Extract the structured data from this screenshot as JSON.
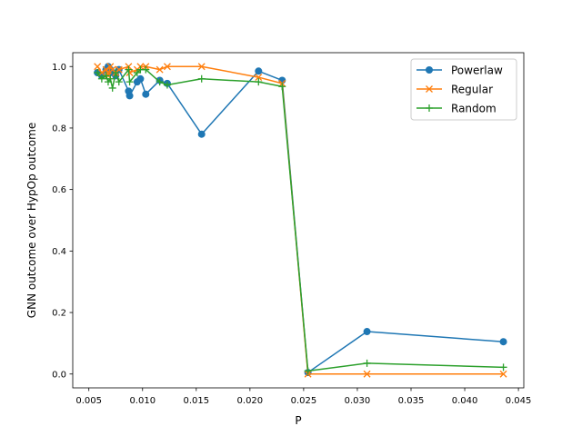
{
  "chart_data": {
    "type": "line",
    "title": "",
    "xlabel": "P",
    "ylabel": "GNN outcome over HypOp outcome",
    "xlim": [
      0.0035,
      0.0455
    ],
    "ylim": [
      -0.045,
      1.045
    ],
    "xticks": [
      0.005,
      0.01,
      0.015,
      0.02,
      0.025,
      0.03,
      0.035,
      0.04,
      0.045
    ],
    "xtick_labels": [
      "0.005",
      "0.010",
      "0.015",
      "0.020",
      "0.025",
      "0.030",
      "0.035",
      "0.040",
      "0.045"
    ],
    "yticks": [
      0.0,
      0.2,
      0.4,
      0.6,
      0.8,
      1.0
    ],
    "ytick_labels": [
      "0.0",
      "0.2",
      "0.4",
      "0.6",
      "0.8",
      "1.0"
    ],
    "grid": false,
    "legend_position": "top-right",
    "series": [
      {
        "name": "Powerlaw",
        "color": "#1f77b4",
        "marker": "circle",
        "x": [
          0.0058,
          0.0062,
          0.0066,
          0.0068,
          0.007,
          0.0072,
          0.0075,
          0.0078,
          0.0087,
          0.0088,
          0.0095,
          0.0098,
          0.0103,
          0.0116,
          0.0123,
          0.0155,
          0.0208,
          0.023,
          0.0254,
          0.0309,
          0.0436
        ],
        "y": [
          0.98,
          0.97,
          0.99,
          1.0,
          0.99,
          0.98,
          0.97,
          0.99,
          0.92,
          0.905,
          0.95,
          0.96,
          0.91,
          0.955,
          0.945,
          0.78,
          0.985,
          0.955,
          0.005,
          0.138,
          0.105
        ]
      },
      {
        "name": "Regular",
        "color": "#ff7f0e",
        "marker": "x",
        "x": [
          0.0058,
          0.0062,
          0.0066,
          0.0068,
          0.007,
          0.0072,
          0.0075,
          0.0078,
          0.0087,
          0.0088,
          0.0095,
          0.0098,
          0.0103,
          0.0116,
          0.0123,
          0.0155,
          0.0208,
          0.023,
          0.0254,
          0.0309,
          0.0436
        ],
        "y": [
          1.0,
          0.98,
          0.99,
          0.97,
          1.0,
          0.99,
          0.98,
          0.99,
          1.0,
          0.98,
          0.99,
          1.0,
          1.0,
          0.99,
          1.0,
          1.0,
          0.965,
          0.945,
          0.0,
          0.0,
          0.0
        ]
      },
      {
        "name": "Random",
        "color": "#2ca02c",
        "marker": "plus",
        "x": [
          0.0058,
          0.0062,
          0.0066,
          0.0068,
          0.007,
          0.0072,
          0.0075,
          0.0078,
          0.0087,
          0.0088,
          0.0095,
          0.0098,
          0.0103,
          0.0116,
          0.0123,
          0.0155,
          0.0208,
          0.023,
          0.0254,
          0.0309,
          0.0436
        ],
        "y": [
          0.98,
          0.96,
          0.97,
          0.95,
          0.96,
          0.93,
          0.98,
          0.95,
          0.99,
          0.95,
          0.98,
          0.99,
          0.99,
          0.95,
          0.94,
          0.96,
          0.95,
          0.935,
          0.01,
          0.035,
          0.022
        ]
      }
    ]
  }
}
